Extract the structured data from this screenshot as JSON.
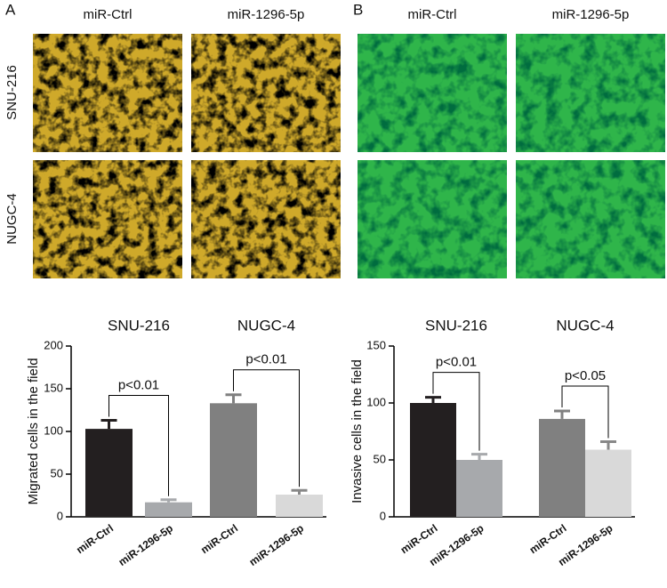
{
  "image_panels": [
    {
      "label": "A",
      "columns": [
        "miR-Ctrl",
        "miR-1296-5p"
      ],
      "rows": [
        "SNU-216",
        "NUGC-4"
      ]
    },
    {
      "label": "B",
      "columns": [
        "miR-Ctrl",
        "miR-1296-5p"
      ]
    }
  ],
  "chart_data": [
    {
      "type": "bar",
      "ylabel": "Migrated cells in the field",
      "groups": [
        "SNU-216",
        "NUGC-4"
      ],
      "categories": [
        "miR-Ctrl",
        "miR-1296-5p",
        "miR-Ctrl",
        "miR-1296-5p"
      ],
      "values": [
        103,
        17,
        133,
        26
      ],
      "errors": [
        10,
        3,
        10,
        5
      ],
      "colors": [
        "#231f20",
        "#a7a9ac",
        "#808080",
        "#d9d9d9"
      ],
      "annotations": [
        "p<0.01",
        "p<0.01"
      ],
      "ylim": [
        0,
        200
      ],
      "yticks": [
        0,
        50,
        100,
        150,
        200
      ]
    },
    {
      "type": "bar",
      "ylabel": "Invasive cells in the field",
      "groups": [
        "SNU-216",
        "NUGC-4"
      ],
      "categories": [
        "miR-Ctrl",
        "miR-1296-5p",
        "miR-Ctrl",
        "miR-1296-5p"
      ],
      "values": [
        100,
        50,
        86,
        59
      ],
      "errors": [
        5,
        5,
        7,
        7
      ],
      "colors": [
        "#231f20",
        "#a7a9ac",
        "#808080",
        "#d9d9d9"
      ],
      "annotations": [
        "p<0.01",
        "p<0.05"
      ],
      "ylim": [
        0,
        150
      ],
      "yticks": [
        0,
        50,
        100,
        150
      ]
    }
  ]
}
